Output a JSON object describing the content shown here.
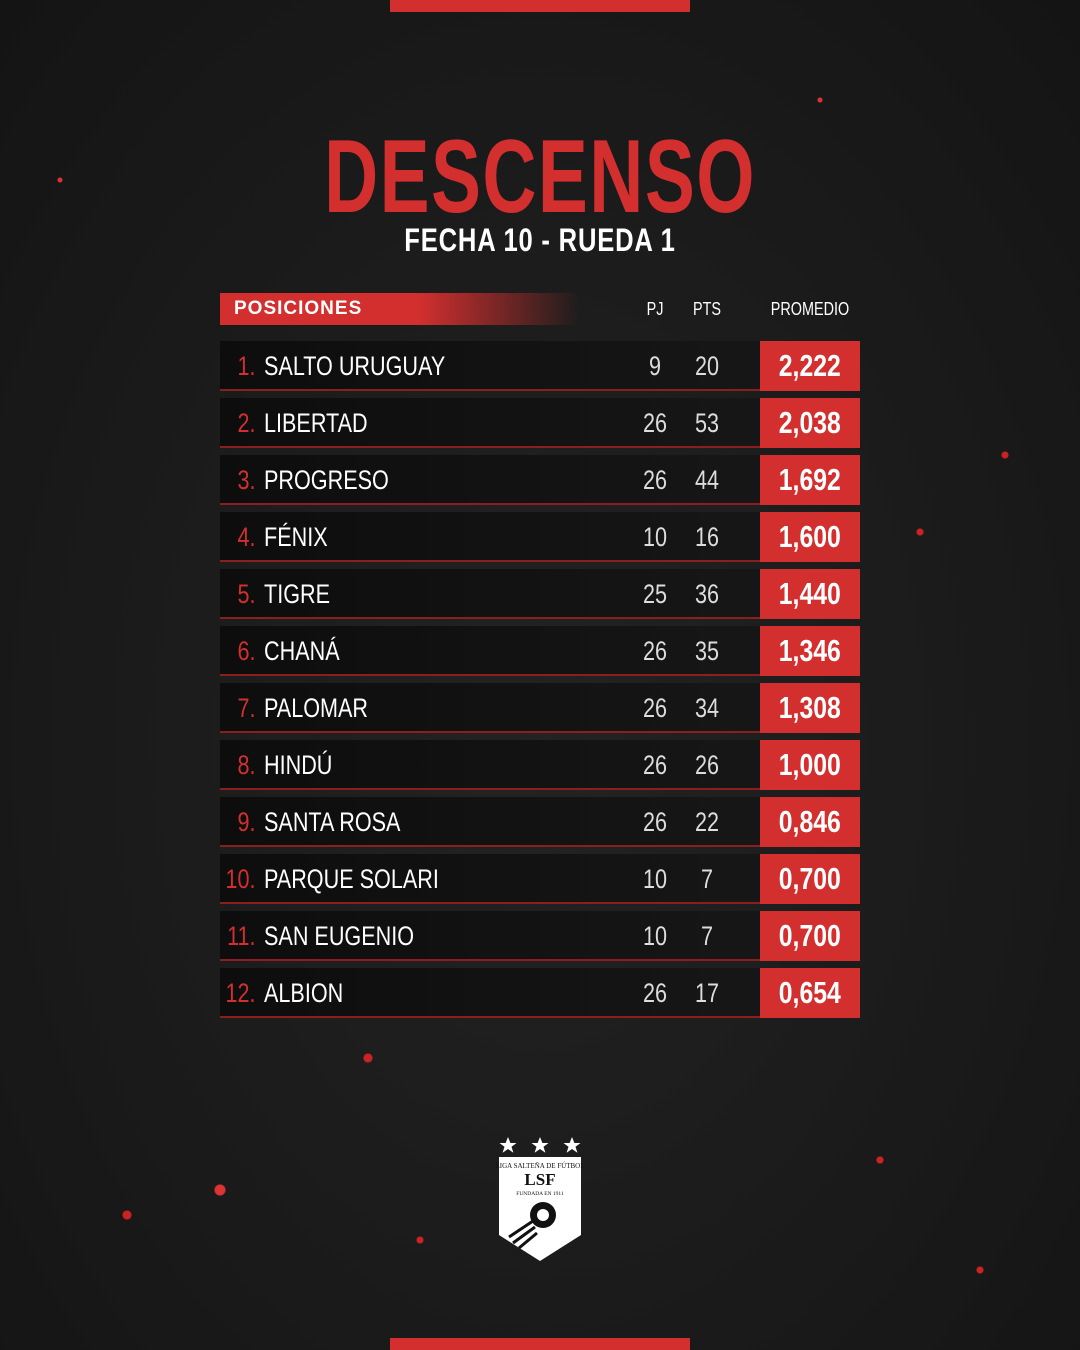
{
  "header": {
    "title": "DESCENSO",
    "subtitle": "FECHA 10 - RUEDA 1"
  },
  "table": {
    "columns": [
      "POSICIONES",
      "PJ",
      "PTS",
      "PROMEDIO"
    ],
    "rows": [
      [
        "1.",
        "SALTO URUGUAY",
        "9",
        "20",
        "2,222"
      ],
      [
        "2.",
        "LIBERTAD",
        "26",
        "53",
        "2,038"
      ],
      [
        "3.",
        "PROGRESO",
        "26",
        "44",
        "1,692"
      ],
      [
        "4.",
        "FÉNIX",
        "10",
        "16",
        "1,600"
      ],
      [
        "5.",
        "TIGRE",
        "25",
        "36",
        "1,440"
      ],
      [
        "6.",
        "CHANÁ",
        "26",
        "35",
        "1,346"
      ],
      [
        "7.",
        "PALOMAR",
        "26",
        "34",
        "1,308"
      ],
      [
        "8.",
        "HINDÚ",
        "26",
        "26",
        "1,000"
      ],
      [
        "9.",
        "SANTA ROSA",
        "26",
        "22",
        "0,846"
      ],
      [
        "10.",
        "PARQUE SOLARI",
        "10",
        "7",
        "0,700"
      ],
      [
        "11.",
        "SAN EUGENIO",
        "10",
        "7",
        "0,700"
      ],
      [
        "12.",
        "ALBION",
        "26",
        "17",
        "0,654"
      ]
    ]
  },
  "logo": {
    "league": "LIGA SALTEÑA DE FÚTBOL",
    "initials": "LSF",
    "founded": "FUNDADA EN 1911"
  }
}
